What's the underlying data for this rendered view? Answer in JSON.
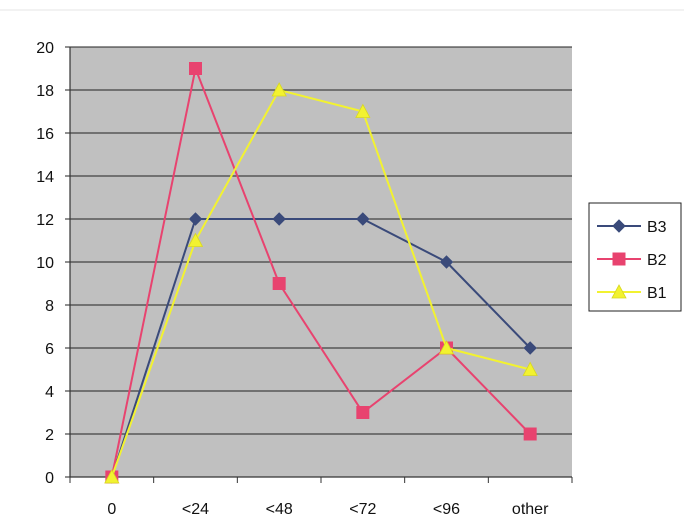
{
  "chart_data": {
    "type": "line",
    "title": "",
    "xlabel": "",
    "ylabel": "",
    "categories": [
      "0",
      "<24",
      "<48",
      "<72",
      "<96",
      "other"
    ],
    "ylim": [
      0,
      20
    ],
    "ytick_step": 2,
    "yticks": [
      "0",
      "2",
      "4",
      "6",
      "8",
      "10",
      "12",
      "14",
      "16",
      "18",
      "20"
    ],
    "grid": true,
    "plot_background": "#c0c0c0",
    "legend_position": "right",
    "series": [
      {
        "name": "B3",
        "values": [
          0,
          12,
          12,
          12,
          10,
          6
        ],
        "color": "#3a4a7a",
        "marker": "diamond"
      },
      {
        "name": "B2",
        "values": [
          0,
          19,
          9,
          3,
          6,
          2
        ],
        "color": "#e8436f",
        "marker": "square"
      },
      {
        "name": "B1",
        "values": [
          0,
          11,
          18,
          17,
          6,
          5
        ],
        "color": "#f2f230",
        "marker": "triangle"
      }
    ]
  }
}
